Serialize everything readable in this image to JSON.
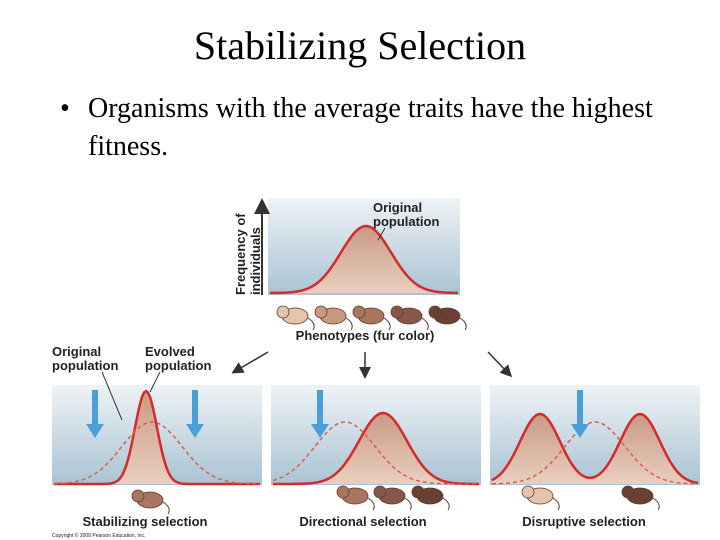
{
  "title": "Stabilizing Selection",
  "bullet": "Organisms with the average traits have the highest fitness.",
  "diagram": {
    "y_axis_label": [
      "Frequency of",
      "individuals"
    ],
    "top_curve_label": [
      "Original",
      "population"
    ],
    "x_axis_label": "Phenotypes (fur color)",
    "left_labels": {
      "original": [
        "Original",
        "population"
      ],
      "evolved": [
        "Evolved",
        "population"
      ]
    },
    "panels": [
      "Stabilizing selection",
      "Directional selection",
      "Disruptive selection"
    ],
    "copyright": "Copyright © 2008 Pearson Education, Inc."
  }
}
